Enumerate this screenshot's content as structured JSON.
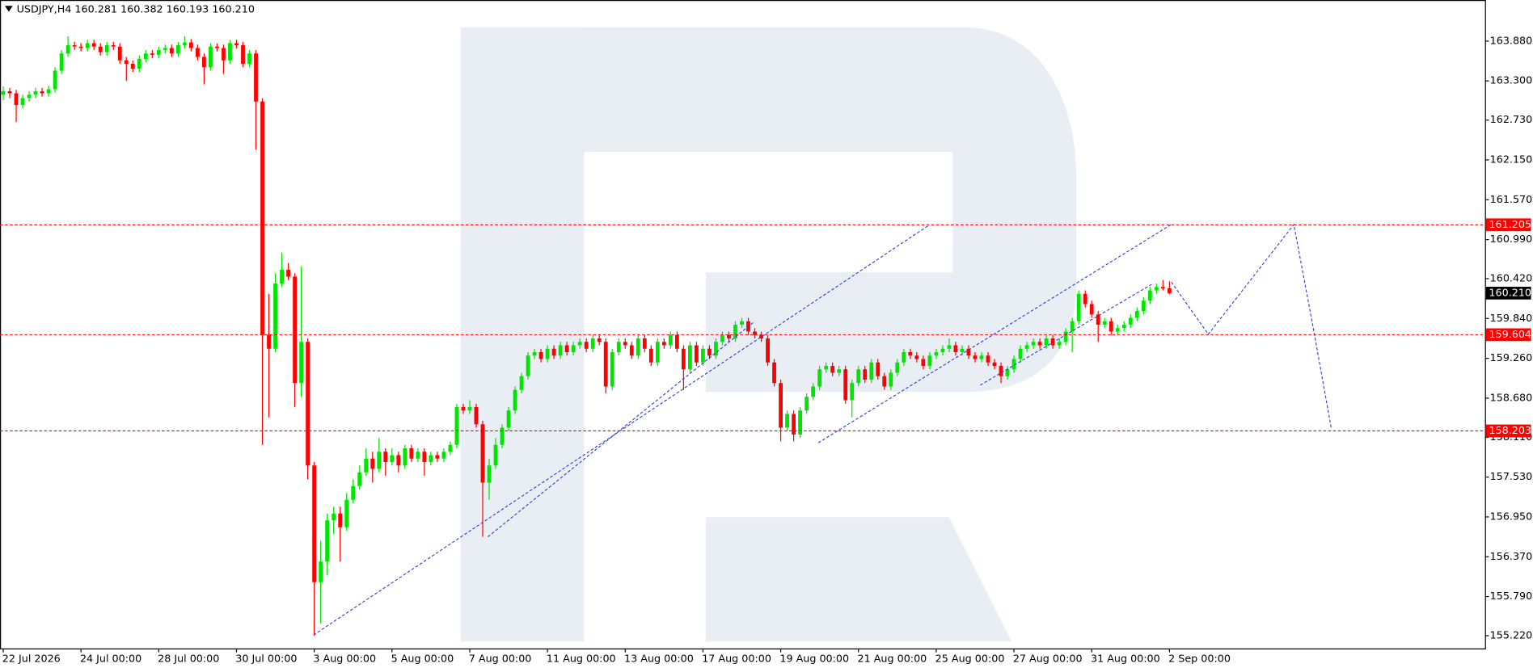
{
  "chart_data": {
    "type": "candlestick",
    "title": "USDJPY,H4  160.281 160.382 160.193 160.210",
    "up_color": "#00e600",
    "down_color": "#ff0000",
    "xlim": [
      -0.5,
      228.7
    ],
    "ylim": [
      155.035,
      164.479
    ],
    "xticks": [
      {
        "value": 0,
        "label": "22 Jul 2026"
      },
      {
        "value": 12,
        "label": "24 Jul 00:00"
      },
      {
        "value": 24,
        "label": "28 Jul 00:00"
      },
      {
        "value": 36,
        "label": "30 Jul 00:00"
      },
      {
        "value": 48,
        "label": "3 Aug 00:00"
      },
      {
        "value": 60,
        "label": "5 Aug 00:00"
      },
      {
        "value": 72,
        "label": "7 Aug 00:00"
      },
      {
        "value": 84,
        "label": "11 Aug 00:00"
      },
      {
        "value": 96,
        "label": "13 Aug 00:00"
      },
      {
        "value": 108,
        "label": "17 Aug 00:00"
      },
      {
        "value": 120,
        "label": "19 Aug 00:00"
      },
      {
        "value": 132,
        "label": "21 Aug 00:00"
      },
      {
        "value": 144,
        "label": "25 Aug 00:00"
      },
      {
        "value": 156,
        "label": "27 Aug 00:00"
      },
      {
        "value": 168,
        "label": "31 Aug 00:00"
      },
      {
        "value": 180,
        "label": "2 Sep 00:00"
      }
    ],
    "yticks": [
      {
        "value": 163.88,
        "label": "163.880"
      },
      {
        "value": 163.3,
        "label": "163.300"
      },
      {
        "value": 162.73,
        "label": "162.730"
      },
      {
        "value": 162.15,
        "label": "162.150"
      },
      {
        "value": 161.57,
        "label": "161.570"
      },
      {
        "value": 160.99,
        "label": "160.990"
      },
      {
        "value": 160.42,
        "label": "160.420"
      },
      {
        "value": 159.84,
        "label": "159.840"
      },
      {
        "value": 159.26,
        "label": "159.260"
      },
      {
        "value": 158.68,
        "label": "158.680"
      },
      {
        "value": 158.11,
        "label": "158.110"
      },
      {
        "value": 157.53,
        "label": "157.530"
      },
      {
        "value": 156.95,
        "label": "156.950"
      },
      {
        "value": 156.37,
        "label": "156.370"
      },
      {
        "value": 155.79,
        "label": "155.790"
      },
      {
        "value": 155.22,
        "label": "155.220"
      }
    ],
    "levels": [
      161.205,
      159.604,
      158.203
    ],
    "level_color": "#ff0000",
    "last_price": {
      "value": 160.21,
      "label": "160.210"
    },
    "trendline_color": "#2a3bd6",
    "trendlines": [
      {
        "x": [
          47.9,
          142.9
        ],
        "y": [
          155.23,
          161.2
        ]
      },
      {
        "x": [
          74.8,
          116
        ],
        "y": [
          156.66,
          159.8
        ]
      },
      {
        "x": [
          125.8,
          180.3
        ],
        "y": [
          158.03,
          161.21
        ]
      },
      {
        "x": [
          150.8,
          177.3
        ],
        "y": [
          158.87,
          160.34
        ]
      },
      {
        "x": [
          180.3,
          183,
          186,
          199.2,
          202.2,
          205
        ],
        "y": [
          160.37,
          160.01,
          159.61,
          161.21,
          159.7,
          158.23
        ]
      }
    ],
    "ohlc": [
      [
        163.1,
        163.22,
        163.02,
        163.15
      ],
      [
        163.15,
        163.2,
        163.05,
        163.12
      ],
      [
        163.12,
        163.17,
        162.7,
        162.95
      ],
      [
        162.95,
        163.1,
        162.9,
        163.05
      ],
      [
        163.05,
        163.15,
        163.0,
        163.1
      ],
      [
        163.1,
        163.2,
        163.05,
        163.15
      ],
      [
        163.15,
        163.2,
        163.07,
        163.12
      ],
      [
        163.12,
        163.23,
        163.07,
        163.18
      ],
      [
        163.18,
        163.5,
        163.13,
        163.45
      ],
      [
        163.45,
        163.75,
        163.4,
        163.7
      ],
      [
        163.7,
        163.95,
        163.65,
        163.82
      ],
      [
        163.82,
        163.87,
        163.75,
        163.8
      ],
      [
        163.8,
        163.85,
        163.73,
        163.78
      ],
      [
        163.78,
        163.9,
        163.73,
        163.85
      ],
      [
        163.85,
        163.9,
        163.75,
        163.8
      ],
      [
        163.8,
        163.85,
        163.67,
        163.72
      ],
      [
        163.72,
        163.87,
        163.67,
        163.82
      ],
      [
        163.82,
        163.87,
        163.75,
        163.8
      ],
      [
        163.8,
        163.85,
        163.55,
        163.6
      ],
      [
        163.6,
        163.65,
        163.3,
        163.55
      ],
      [
        163.55,
        163.6,
        163.43,
        163.48
      ],
      [
        163.48,
        163.67,
        163.43,
        163.62
      ],
      [
        163.62,
        163.75,
        163.57,
        163.7
      ],
      [
        163.7,
        163.75,
        163.63,
        163.68
      ],
      [
        163.68,
        163.8,
        163.63,
        163.75
      ],
      [
        163.75,
        163.83,
        163.7,
        163.78
      ],
      [
        163.78,
        163.83,
        163.65,
        163.7
      ],
      [
        163.7,
        163.87,
        163.65,
        163.82
      ],
      [
        163.82,
        163.95,
        163.77,
        163.86
      ],
      [
        163.86,
        163.91,
        163.73,
        163.78
      ],
      [
        163.78,
        163.83,
        163.6,
        163.65
      ],
      [
        163.65,
        163.7,
        163.25,
        163.5
      ],
      [
        163.5,
        163.85,
        163.45,
        163.8
      ],
      [
        163.8,
        163.85,
        163.73,
        163.78
      ],
      [
        163.78,
        163.83,
        163.4,
        163.6
      ],
      [
        163.6,
        163.9,
        163.55,
        163.85
      ],
      [
        163.85,
        163.9,
        163.77,
        163.82
      ],
      [
        163.82,
        163.87,
        163.5,
        163.55
      ],
      [
        163.55,
        163.75,
        163.5,
        163.7
      ],
      [
        163.7,
        163.75,
        162.3,
        163.0
      ],
      [
        163.0,
        163.05,
        158.0,
        159.6
      ],
      [
        159.6,
        160.2,
        158.4,
        159.4
      ],
      [
        159.4,
        160.5,
        159.35,
        160.35
      ],
      [
        160.35,
        160.8,
        160.3,
        160.55
      ],
      [
        160.55,
        160.65,
        160.4,
        160.45
      ],
      [
        160.45,
        160.5,
        158.55,
        158.9
      ],
      [
        158.9,
        160.6,
        158.7,
        159.5
      ],
      [
        159.5,
        159.55,
        157.5,
        157.7
      ],
      [
        157.7,
        157.75,
        155.22,
        156.0
      ],
      [
        156.0,
        156.6,
        155.4,
        156.3
      ],
      [
        156.3,
        157.0,
        156.1,
        156.9
      ],
      [
        156.9,
        157.1,
        156.7,
        157.0
      ],
      [
        157.0,
        157.1,
        156.3,
        156.8
      ],
      [
        156.8,
        157.3,
        156.75,
        157.2
      ],
      [
        157.2,
        157.5,
        157.15,
        157.4
      ],
      [
        157.4,
        157.7,
        157.35,
        157.6
      ],
      [
        157.6,
        157.95,
        157.55,
        157.8
      ],
      [
        157.8,
        157.9,
        157.45,
        157.65
      ],
      [
        157.65,
        158.1,
        157.6,
        157.9
      ],
      [
        157.9,
        157.95,
        157.55,
        157.75
      ],
      [
        157.75,
        157.95,
        157.7,
        157.85
      ],
      [
        157.85,
        157.9,
        157.6,
        157.7
      ],
      [
        157.7,
        158.0,
        157.65,
        157.95
      ],
      [
        157.95,
        158.0,
        157.75,
        157.8
      ],
      [
        157.8,
        157.95,
        157.75,
        157.9
      ],
      [
        157.9,
        157.95,
        157.55,
        157.75
      ],
      [
        157.75,
        157.9,
        157.7,
        157.85
      ],
      [
        157.85,
        157.9,
        157.75,
        157.8
      ],
      [
        157.8,
        157.95,
        157.75,
        157.9
      ],
      [
        157.9,
        158.05,
        157.85,
        158.0
      ],
      [
        158.0,
        158.6,
        157.95,
        158.55
      ],
      [
        158.55,
        158.6,
        158.45,
        158.5
      ],
      [
        158.5,
        158.65,
        158.45,
        158.55
      ],
      [
        158.55,
        158.6,
        158.25,
        158.3
      ],
      [
        158.3,
        158.35,
        156.66,
        157.45
      ],
      [
        157.45,
        157.8,
        157.2,
        157.7
      ],
      [
        157.7,
        158.1,
        157.65,
        158.0
      ],
      [
        158.0,
        158.3,
        157.95,
        158.25
      ],
      [
        158.25,
        158.55,
        158.2,
        158.5
      ],
      [
        158.5,
        158.85,
        158.45,
        158.8
      ],
      [
        158.8,
        159.05,
        158.75,
        159.0
      ],
      [
        159.0,
        159.35,
        158.95,
        159.3
      ],
      [
        159.3,
        159.4,
        159.25,
        159.35
      ],
      [
        159.35,
        159.4,
        159.2,
        159.25
      ],
      [
        159.25,
        159.45,
        159.2,
        159.4
      ],
      [
        159.4,
        159.45,
        159.25,
        159.3
      ],
      [
        159.3,
        159.5,
        159.25,
        159.45
      ],
      [
        159.45,
        159.5,
        159.3,
        159.35
      ],
      [
        159.35,
        159.5,
        159.3,
        159.45
      ],
      [
        159.45,
        159.55,
        159.4,
        159.5
      ],
      [
        159.5,
        159.55,
        159.35,
        159.4
      ],
      [
        159.4,
        159.6,
        159.35,
        159.55
      ],
      [
        159.55,
        159.6,
        159.45,
        159.5
      ],
      [
        159.5,
        159.55,
        158.75,
        158.85
      ],
      [
        158.85,
        159.4,
        158.8,
        159.35
      ],
      [
        159.35,
        159.55,
        159.3,
        159.5
      ],
      [
        159.5,
        159.55,
        159.4,
        159.45
      ],
      [
        159.45,
        159.5,
        159.25,
        159.3
      ],
      [
        159.3,
        159.6,
        159.25,
        159.55
      ],
      [
        159.55,
        159.6,
        159.35,
        159.4
      ],
      [
        159.4,
        159.45,
        159.15,
        159.2
      ],
      [
        159.2,
        159.55,
        159.15,
        159.5
      ],
      [
        159.5,
        159.55,
        159.4,
        159.45
      ],
      [
        159.45,
        159.65,
        159.4,
        159.6
      ],
      [
        159.6,
        159.65,
        159.35,
        159.4
      ],
      [
        159.4,
        159.45,
        158.8,
        159.1
      ],
      [
        159.1,
        159.5,
        159.05,
        159.45
      ],
      [
        159.45,
        159.5,
        159.15,
        159.2
      ],
      [
        159.2,
        159.45,
        159.15,
        159.4
      ],
      [
        159.4,
        159.45,
        159.25,
        159.3
      ],
      [
        159.3,
        159.55,
        159.25,
        159.5
      ],
      [
        159.5,
        159.65,
        159.45,
        159.6
      ],
      [
        159.6,
        159.65,
        159.5,
        159.55
      ],
      [
        159.55,
        159.8,
        159.5,
        159.75
      ],
      [
        159.75,
        159.85,
        159.7,
        159.8
      ],
      [
        159.8,
        159.85,
        159.6,
        159.65
      ],
      [
        159.65,
        159.7,
        159.55,
        159.6
      ],
      [
        159.6,
        159.65,
        159.5,
        159.55
      ],
      [
        159.55,
        159.6,
        159.15,
        159.2
      ],
      [
        159.2,
        159.25,
        158.85,
        158.9
      ],
      [
        158.9,
        158.95,
        158.05,
        158.25
      ],
      [
        158.25,
        158.5,
        158.2,
        158.45
      ],
      [
        158.45,
        158.5,
        158.05,
        158.15
      ],
      [
        158.15,
        158.55,
        158.1,
        158.5
      ],
      [
        158.5,
        158.75,
        158.45,
        158.7
      ],
      [
        158.7,
        158.9,
        158.65,
        158.85
      ],
      [
        158.85,
        159.15,
        158.8,
        159.1
      ],
      [
        159.1,
        159.2,
        159.05,
        159.15
      ],
      [
        159.15,
        159.2,
        159.0,
        159.05
      ],
      [
        159.05,
        159.15,
        159.0,
        159.1
      ],
      [
        159.1,
        159.15,
        158.6,
        158.65
      ],
      [
        158.65,
        158.95,
        158.4,
        158.9
      ],
      [
        158.9,
        159.15,
        158.85,
        159.1
      ],
      [
        159.1,
        159.15,
        158.9,
        158.95
      ],
      [
        158.95,
        159.25,
        158.9,
        159.2
      ],
      [
        159.2,
        159.25,
        158.95,
        159.0
      ],
      [
        159.0,
        159.05,
        158.8,
        158.85
      ],
      [
        158.85,
        159.1,
        158.8,
        159.05
      ],
      [
        159.05,
        159.25,
        159.0,
        159.2
      ],
      [
        159.2,
        159.4,
        159.15,
        159.35
      ],
      [
        159.35,
        159.4,
        159.25,
        159.3
      ],
      [
        159.3,
        159.35,
        159.2,
        159.25
      ],
      [
        159.25,
        159.3,
        159.1,
        159.15
      ],
      [
        159.15,
        159.35,
        159.1,
        159.3
      ],
      [
        159.3,
        159.4,
        159.25,
        159.35
      ],
      [
        159.35,
        159.45,
        159.3,
        159.4
      ],
      [
        159.4,
        159.55,
        159.35,
        159.45
      ],
      [
        159.45,
        159.5,
        159.3,
        159.35
      ],
      [
        159.35,
        159.45,
        159.3,
        159.4
      ],
      [
        159.4,
        159.45,
        159.25,
        159.3
      ],
      [
        159.3,
        159.35,
        159.2,
        159.25
      ],
      [
        159.25,
        159.35,
        159.2,
        159.3
      ],
      [
        159.3,
        159.35,
        159.15,
        159.2
      ],
      [
        159.2,
        159.25,
        159.1,
        159.15
      ],
      [
        159.15,
        159.2,
        158.9,
        159.0
      ],
      [
        159.0,
        159.15,
        158.95,
        159.1
      ],
      [
        159.1,
        159.3,
        159.05,
        159.25
      ],
      [
        159.25,
        159.45,
        159.2,
        159.4
      ],
      [
        159.4,
        159.5,
        159.35,
        159.45
      ],
      [
        159.45,
        159.55,
        159.4,
        159.5
      ],
      [
        159.5,
        159.55,
        159.4,
        159.45
      ],
      [
        159.45,
        159.6,
        159.4,
        159.55
      ],
      [
        159.55,
        159.6,
        159.4,
        159.45
      ],
      [
        159.45,
        159.55,
        159.4,
        159.5
      ],
      [
        159.5,
        159.7,
        159.45,
        159.65
      ],
      [
        159.65,
        159.85,
        159.35,
        159.8
      ],
      [
        159.8,
        160.25,
        159.75,
        160.2
      ],
      [
        160.2,
        160.25,
        160.0,
        160.05
      ],
      [
        160.05,
        160.1,
        159.85,
        159.9
      ],
      [
        159.9,
        159.95,
        159.5,
        159.75
      ],
      [
        159.75,
        159.85,
        159.7,
        159.8
      ],
      [
        159.8,
        159.85,
        159.6,
        159.65
      ],
      [
        159.65,
        159.75,
        159.6,
        159.7
      ],
      [
        159.7,
        159.8,
        159.65,
        159.75
      ],
      [
        159.75,
        159.9,
        159.7,
        159.85
      ],
      [
        159.85,
        160.0,
        159.8,
        159.95
      ],
      [
        159.95,
        160.15,
        159.9,
        160.1
      ],
      [
        160.1,
        160.3,
        160.05,
        160.25
      ],
      [
        160.25,
        160.35,
        160.2,
        160.3
      ],
      [
        160.3,
        160.4,
        160.25,
        160.28
      ],
      [
        160.281,
        160.382,
        160.193,
        160.21
      ]
    ]
  }
}
